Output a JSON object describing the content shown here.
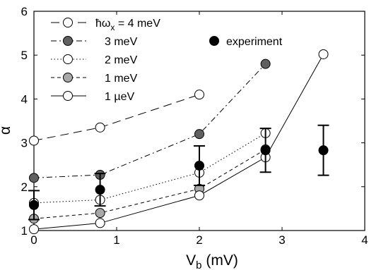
{
  "chart_data": {
    "type": "line",
    "xlabel": "V",
    "xlabel_sub": "b",
    "xlabel_unit": " (mV)",
    "ylabel": "α",
    "xlim": [
      0,
      4
    ],
    "ylim": [
      1,
      6
    ],
    "xticks": [
      "0",
      "1",
      "2",
      "3",
      "4"
    ],
    "yticks": [
      "1",
      "2",
      "3",
      "4",
      "5",
      "6"
    ],
    "grid": false,
    "legend_position": "top-left",
    "series": [
      {
        "name": "ħω",
        "name_sub": "x",
        "name_suffix": " = 4 meV",
        "dash": "long-dash",
        "marker_fill": "#ffffff",
        "x": [
          0,
          0.8,
          2.0
        ],
        "y": [
          3.05,
          3.35,
          4.1
        ]
      },
      {
        "name": "3 meV",
        "dash": "dash-dot",
        "marker_fill": "#606060",
        "x": [
          0,
          0.8,
          2.0,
          2.8
        ],
        "y": [
          2.2,
          2.27,
          3.2,
          4.8
        ]
      },
      {
        "name": "2 meV",
        "dash": "dotted",
        "marker_fill": "#ffffff",
        "x": [
          0,
          0.8,
          2.0,
          2.8
        ],
        "y": [
          1.63,
          1.7,
          2.32,
          3.22
        ]
      },
      {
        "name": "1 meV",
        "dash": "short-dash",
        "marker_fill": "#a8a8a8",
        "x": [
          0,
          0.8,
          2.0,
          2.8
        ],
        "y": [
          1.27,
          1.4,
          1.95,
          2.85
        ]
      },
      {
        "name": "1 µeV",
        "dash": "solid",
        "marker_fill": "#ffffff",
        "x": [
          0,
          0.8,
          2.0,
          2.8,
          3.5
        ],
        "y": [
          1.03,
          1.17,
          1.8,
          2.67,
          5.02
        ]
      }
    ],
    "experiment": {
      "name": "experiment",
      "x": [
        0,
        0.8,
        2.0,
        2.8,
        3.5
      ],
      "y": [
        1.58,
        1.93,
        2.48,
        2.83,
        2.83
      ],
      "err": [
        0.33,
        0.37,
        0.45,
        0.5,
        0.57
      ]
    }
  }
}
